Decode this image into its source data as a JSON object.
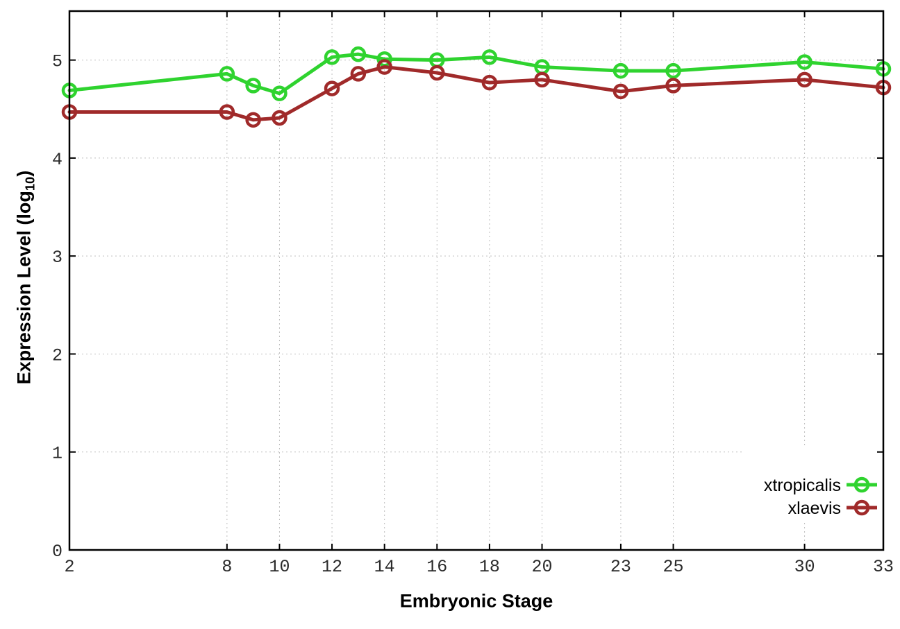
{
  "chart_data": {
    "type": "line",
    "x": [
      2,
      8,
      9,
      10,
      12,
      13,
      14,
      16,
      18,
      20,
      23,
      25,
      30,
      33
    ],
    "series": [
      {
        "name": "xtropicalis",
        "color": "#2fd32f",
        "marker": "open-circle",
        "values": [
          4.69,
          4.86,
          4.74,
          4.66,
          5.03,
          5.06,
          5.01,
          5.0,
          5.03,
          4.93,
          4.89,
          4.89,
          4.98,
          4.91
        ]
      },
      {
        "name": "xlaevis",
        "color": "#a02a2a",
        "marker": "open-circle",
        "values": [
          4.47,
          4.47,
          4.39,
          4.41,
          4.71,
          4.86,
          4.93,
          4.87,
          4.77,
          4.8,
          4.68,
          4.74,
          4.8,
          4.72
        ]
      }
    ],
    "xlabel": "Embryonic Stage",
    "ylabel": "Expression Level (log10)",
    "ylabel_parts": {
      "main": "Expression Level (log",
      "sub": "10",
      "close": ")"
    },
    "xlim": [
      2,
      33
    ],
    "ylim": [
      0,
      5.5
    ],
    "x_ticks": [
      2,
      8,
      10,
      12,
      14,
      16,
      18,
      20,
      23,
      25,
      30,
      33
    ],
    "y_ticks": [
      0,
      1,
      2,
      3,
      4,
      5
    ],
    "grid": true,
    "legend_position": "inside-bottom-right",
    "background": "#ffffff",
    "border_color": "#000000"
  }
}
